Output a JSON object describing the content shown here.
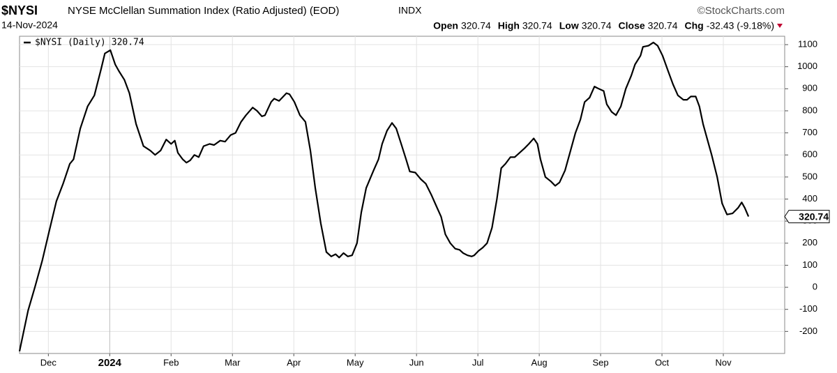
{
  "chart_data": {
    "type": "line",
    "symbol": "$NYSI",
    "title": "NYSE McClellan Summation Index (Ratio Adjusted) (EOD)",
    "exchange": "INDX",
    "source": "©StockCharts.com",
    "date": "14-Nov-2024",
    "quote": [
      {
        "label": "Open",
        "value": 320.74
      },
      {
        "label": "High",
        "value": 320.74
      },
      {
        "label": "Low",
        "value": 320.74
      },
      {
        "label": "Close",
        "value": 320.74
      },
      {
        "label": "Chg",
        "value": -32.43,
        "value_label": "-32.43 (-9.18%)"
      }
    ],
    "x": [
      -0.47,
      -0.33,
      -0.22,
      -0.1,
      0.01,
      0.13,
      0.24,
      0.35,
      0.41,
      0.52,
      0.64,
      0.75,
      0.86,
      0.92,
      1.01,
      1.09,
      1.15,
      1.24,
      1.32,
      1.43,
      1.55,
      1.66,
      1.74,
      1.83,
      1.92,
      2.0,
      2.06,
      2.11,
      2.19,
      2.25,
      2.31,
      2.38,
      2.45,
      2.53,
      2.63,
      2.7,
      2.8,
      2.88,
      2.97,
      3.05,
      3.14,
      3.22,
      3.33,
      3.4,
      3.48,
      3.53,
      3.63,
      3.68,
      3.76,
      3.88,
      3.93,
      4.01,
      4.1,
      4.19,
      4.27,
      4.35,
      4.44,
      4.53,
      4.61,
      4.68,
      4.74,
      4.81,
      4.88,
      4.95,
      5.03,
      5.1,
      5.18,
      5.3,
      5.38,
      5.44,
      5.52,
      5.6,
      5.67,
      5.75,
      5.83,
      5.89,
      5.98,
      6.07,
      6.15,
      6.24,
      6.32,
      6.4,
      6.47,
      6.55,
      6.63,
      6.7,
      6.76,
      6.83,
      6.9,
      6.94,
      7.01,
      7.08,
      7.15,
      7.23,
      7.31,
      7.38,
      7.45,
      7.53,
      7.6,
      7.68,
      7.76,
      7.83,
      7.91,
      7.97,
      8.02,
      8.1,
      8.19,
      8.26,
      8.33,
      8.42,
      8.51,
      8.59,
      8.67,
      8.74,
      8.82,
      8.9,
      8.97,
      9.05,
      9.1,
      9.18,
      9.25,
      9.33,
      9.41,
      9.5,
      9.56,
      9.65,
      9.69,
      9.78,
      9.86,
      9.93,
      10.01,
      10.1,
      10.18,
      10.26,
      10.35,
      10.41,
      10.47,
      10.55,
      10.61,
      10.67,
      10.75,
      10.81,
      10.9,
      10.98,
      11.06,
      11.15,
      11.24,
      11.3,
      11.35,
      11.41
    ],
    "series": [
      {
        "name": "$NYSI (Daily)",
        "color": "#000000",
        "values": [
          -290,
          -105,
          0,
          120,
          250,
          390,
          470,
          560,
          580,
          720,
          820,
          870,
          990,
          1060,
          1075,
          1010,
          980,
          940,
          880,
          740,
          640,
          620,
          600,
          620,
          670,
          650,
          665,
          610,
          580,
          565,
          575,
          600,
          590,
          640,
          650,
          645,
          665,
          660,
          690,
          700,
          750,
          780,
          815,
          800,
          775,
          780,
          840,
          855,
          845,
          880,
          875,
          840,
          780,
          750,
          620,
          450,
          290,
          160,
          140,
          150,
          135,
          155,
          140,
          145,
          200,
          340,
          450,
          530,
          580,
          650,
          710,
          745,
          720,
          650,
          580,
          525,
          520,
          490,
          470,
          420,
          370,
          320,
          240,
          200,
          175,
          170,
          155,
          145,
          140,
          145,
          165,
          180,
          200,
          270,
          400,
          540,
          560,
          590,
          590,
          610,
          630,
          650,
          675,
          650,
          580,
          500,
          480,
          460,
          475,
          530,
          620,
          700,
          760,
          840,
          860,
          910,
          900,
          890,
          830,
          795,
          780,
          820,
          900,
          960,
          1010,
          1050,
          1090,
          1095,
          1110,
          1095,
          1050,
          980,
          920,
          870,
          850,
          850,
          865,
          865,
          820,
          740,
          660,
          600,
          500,
          380,
          330,
          335,
          360,
          385,
          360,
          320.74
        ]
      }
    ],
    "xlim": [
      -0.47,
      12.0
    ],
    "xticks": [
      {
        "value": 0,
        "label": "Dec"
      },
      {
        "value": 1,
        "label": "2024"
      },
      {
        "value": 2,
        "label": "Feb"
      },
      {
        "value": 3,
        "label": "Mar"
      },
      {
        "value": 4,
        "label": "Apr"
      },
      {
        "value": 5,
        "label": "May"
      },
      {
        "value": 6,
        "label": "Jun"
      },
      {
        "value": 7,
        "label": "Jul"
      },
      {
        "value": 8,
        "label": "Aug"
      },
      {
        "value": 9,
        "label": "Sep"
      },
      {
        "value": 10,
        "label": "Oct"
      },
      {
        "value": 11,
        "label": "Nov"
      }
    ],
    "ylim": [
      -300,
      1138
    ],
    "yticks": [
      -200,
      -100,
      0,
      100,
      200,
      300,
      400,
      500,
      600,
      700,
      800,
      900,
      1000,
      1100
    ],
    "grid": true,
    "legend": "top-left"
  }
}
